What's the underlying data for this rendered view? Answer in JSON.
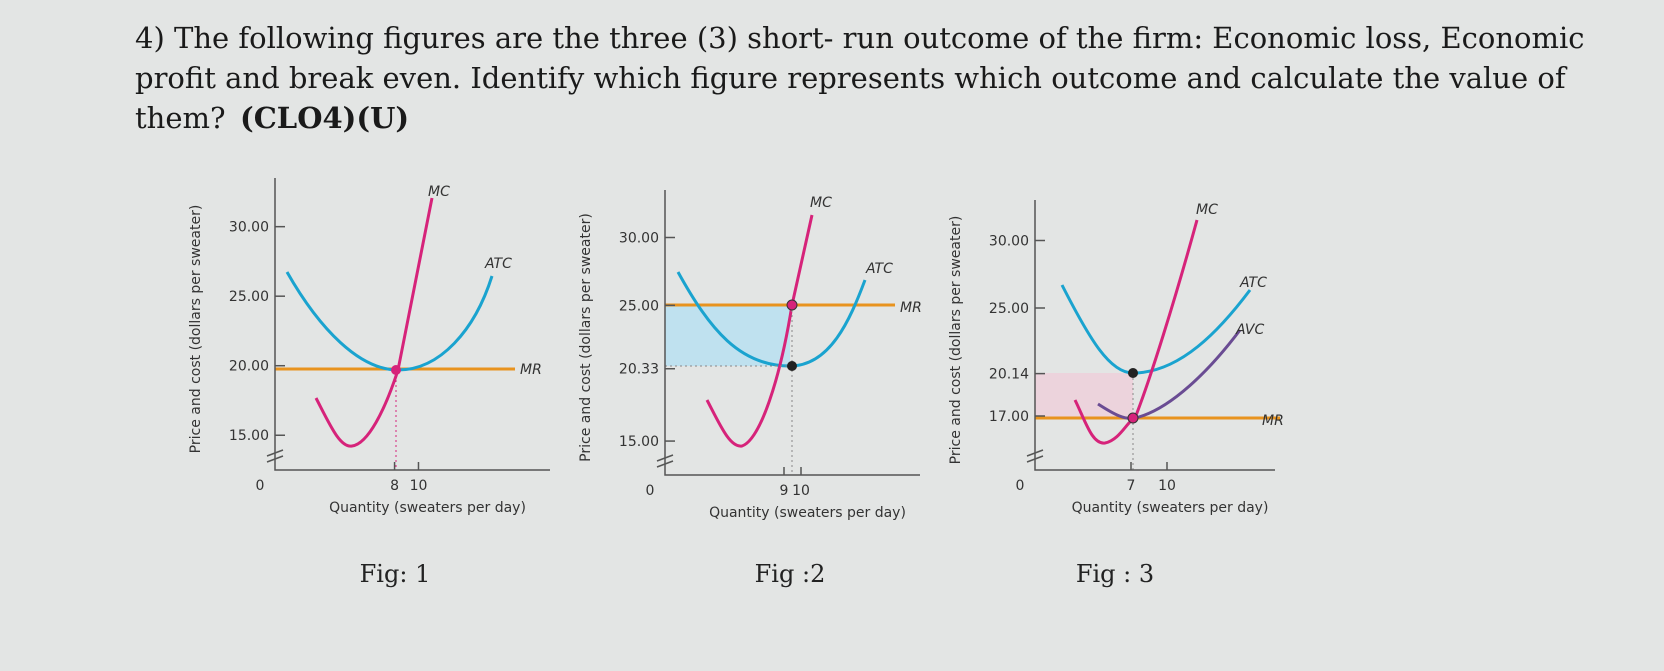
{
  "question": {
    "lines": [
      "4) The following figures are the three (3) short- run outcome of the firm: Economic loss, Economic",
      "profit and break even. Identify which figure represents which outcome and calculate the value of",
      "them?"
    ],
    "tag": "(CLO4)(U)"
  },
  "figures": [
    {
      "y_label": "Price and cost (dollars per sweater)",
      "x_label": "Quantity (sweaters per day)",
      "origin": "0",
      "ylim": [
        12.5,
        33.5
      ],
      "xlim": [
        -2,
        21
      ],
      "yticks": [
        {
          "value": 15,
          "label": "15.00"
        },
        {
          "value": 20,
          "label": "20.00"
        },
        {
          "value": 25,
          "label": "25.00"
        },
        {
          "value": 30,
          "label": "30.00"
        }
      ],
      "xticks": [
        8,
        10
      ],
      "curves": [
        "MC",
        "ATC",
        "MR"
      ],
      "caption": "Fig: 1"
    },
    {
      "y_label": "Price and cost (dollars per sweater)",
      "x_label": "Quantity (sweaters per day)",
      "origin": "0",
      "ylim": [
        12.5,
        33.5
      ],
      "xlim": [
        2,
        17
      ],
      "yticks": [
        {
          "value": 15,
          "label": "15.00"
        },
        {
          "value": 20.33,
          "label": "20.33"
        },
        {
          "value": 25,
          "label": "25.00"
        },
        {
          "value": 30,
          "label": "30.00"
        }
      ],
      "xticks": [
        9,
        10
      ],
      "curves": [
        "MC",
        "ATC",
        "MR"
      ],
      "caption": "Fig :2"
    },
    {
      "y_label": "Price and cost (dollars per sweater)",
      "x_label": "Quantity (sweaters per day)",
      "origin": "0",
      "ylim": [
        13,
        33
      ],
      "xlim": [
        -1,
        19
      ],
      "yticks": [
        {
          "value": 17,
          "label": "17.00"
        },
        {
          "value": 20.14,
          "label": "20.14"
        },
        {
          "value": 25,
          "label": "25.00"
        },
        {
          "value": 30,
          "label": "30.00"
        }
      ],
      "xticks": [
        7,
        10
      ],
      "curves": [
        "MC",
        "ATC",
        "AVC",
        "MR"
      ],
      "caption": "Fig : 3"
    }
  ]
}
